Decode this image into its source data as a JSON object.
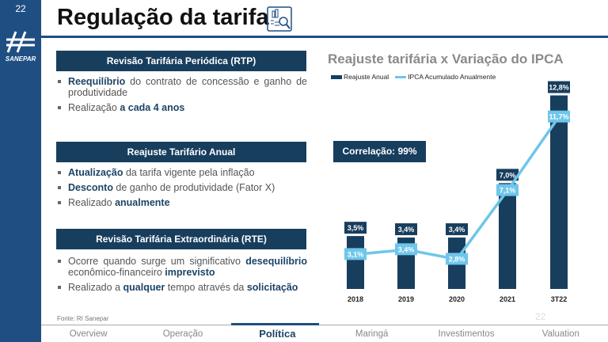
{
  "page_number": "22",
  "logo_text": "SANEPAR",
  "title": "Regulação da tarifa",
  "sections": [
    {
      "header": "Revisão Tarifária Periódica (RTP)",
      "bullets": [
        [
          {
            "b": "Reequilíbrio"
          },
          {
            "t": " do contrato de concessão e ganho de produtividade"
          }
        ],
        [
          {
            "t": "Realização "
          },
          {
            "b": "a cada 4 anos"
          }
        ]
      ]
    },
    {
      "header": "Reajuste Tarifário Anual",
      "bullets": [
        [
          {
            "b": "Atualização"
          },
          {
            "t": " da tarifa vigente pela inflação"
          }
        ],
        [
          {
            "b": "Desconto"
          },
          {
            "t": " de ganho de produtividade (Fator X)"
          }
        ],
        [
          {
            "t": "Realizado "
          },
          {
            "b": "anualmente"
          }
        ]
      ]
    },
    {
      "header": "Revisão Tarifária Extraordinária (RTE)",
      "bullets": [
        [
          {
            "t": "Ocorre quando surge um significativo "
          },
          {
            "b": "desequilíbrio"
          },
          {
            "t": " econômico-financeiro "
          },
          {
            "b": "imprevisto"
          }
        ],
        [
          {
            "t": "Realizado a "
          },
          {
            "b": "qualquer"
          },
          {
            "t": " tempo através da "
          },
          {
            "b": "solicitação"
          }
        ]
      ]
    }
  ],
  "correlation": "Correlação: 99%",
  "chart_data": {
    "type": "bar+line",
    "title": "Reajuste tarifária x Variação do IPCA",
    "categories": [
      "2018",
      "2019",
      "2020",
      "2021",
      "3T22"
    ],
    "series": [
      {
        "name": "Reajuste Anual",
        "type": "bar",
        "color": "#183e5e",
        "values": [
          3.5,
          3.4,
          3.4,
          7.0,
          12.8
        ],
        "labels": [
          "3,5%",
          "3,4%",
          "3,4%",
          "7,0%",
          "12,8%"
        ]
      },
      {
        "name": "IPCA Acumulado Anualmente",
        "type": "line",
        "color": "#6ec6ea",
        "values": [
          3.1,
          3.4,
          2.8,
          7.1,
          11.7
        ],
        "labels": [
          "3,1%",
          "3,4%",
          "2,8%",
          "7,1%",
          "11,7%"
        ]
      }
    ],
    "legend": "top-left"
  },
  "source": "Fonte: RI Sanepar",
  "footer_page": "22",
  "nav": [
    "Overview",
    "Operação",
    "Política",
    "Maringá",
    "Investimentos",
    "Valuation"
  ],
  "nav_active": 2
}
